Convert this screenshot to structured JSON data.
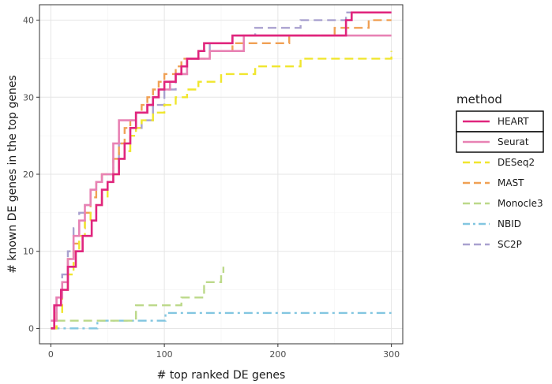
{
  "chart_data": {
    "type": "line",
    "title": "",
    "xlabel": "# top ranked DE genes",
    "ylabel": "# known DE genes in the top genes",
    "xlim": [
      -10,
      310
    ],
    "ylim": [
      -2,
      42
    ],
    "xticks": [
      0,
      100,
      200,
      300
    ],
    "yticks": [
      0,
      10,
      20,
      30,
      40
    ],
    "grid": true,
    "legend": {
      "title": "method",
      "position": "right"
    },
    "series": [
      {
        "name": "HEART",
        "color": "#e0257d",
        "linestyle": "solid",
        "boxed": true,
        "x": [
          0,
          3,
          6,
          9,
          12,
          15,
          18,
          22,
          25,
          28,
          32,
          36,
          40,
          45,
          50,
          55,
          60,
          65,
          70,
          75,
          80,
          85,
          90,
          95,
          100,
          105,
          110,
          115,
          120,
          125,
          130,
          135,
          140,
          150,
          160,
          170,
          180,
          200,
          230,
          260,
          265,
          300
        ],
        "y": [
          0,
          3,
          3,
          5,
          5,
          8,
          8,
          10,
          10,
          12,
          12,
          14,
          16,
          18,
          19,
          20,
          22,
          24,
          26,
          28,
          28,
          29,
          30,
          31,
          32,
          32,
          33,
          34,
          35,
          35,
          36,
          37,
          37,
          37,
          38,
          38,
          38,
          38,
          38,
          40,
          41,
          41
        ]
      },
      {
        "name": "Seurat",
        "color": "#e882b4",
        "linestyle": "solid",
        "boxed": true,
        "x": [
          0,
          5,
          10,
          15,
          20,
          25,
          30,
          35,
          40,
          45,
          50,
          55,
          60,
          65,
          70,
          75,
          80,
          85,
          90,
          95,
          100,
          105,
          110,
          120,
          130,
          140,
          150,
          160,
          170,
          180,
          200,
          250,
          300
        ],
        "y": [
          1,
          4,
          6,
          9,
          12,
          14,
          16,
          18,
          19,
          20,
          20,
          24,
          27,
          27,
          27,
          28,
          28,
          29,
          30,
          31,
          31,
          32,
          33,
          35,
          35,
          36,
          36,
          36,
          38,
          38,
          38,
          38,
          38
        ]
      },
      {
        "name": "DESeq2",
        "color": "#f0e62e",
        "linestyle": "dashed",
        "boxed": false,
        "x": [
          0,
          5,
          10,
          15,
          20,
          25,
          30,
          35,
          40,
          45,
          50,
          55,
          60,
          65,
          70,
          75,
          80,
          90,
          100,
          110,
          120,
          130,
          140,
          150,
          160,
          170,
          180,
          200,
          220,
          240,
          260,
          280,
          300
        ],
        "y": [
          0,
          2,
          5,
          7,
          10,
          12,
          14,
          15,
          16,
          17,
          19,
          20,
          22,
          23,
          25,
          26,
          27,
          28,
          29,
          30,
          31,
          32,
          32,
          33,
          33,
          33,
          34,
          34,
          35,
          35,
          35,
          35,
          36
        ]
      },
      {
        "name": "MAST",
        "color": "#f0a054",
        "linestyle": "dashed",
        "boxed": false,
        "x": [
          0,
          5,
          10,
          15,
          20,
          25,
          30,
          35,
          40,
          45,
          50,
          55,
          60,
          65,
          70,
          75,
          80,
          85,
          90,
          95,
          100,
          105,
          110,
          115,
          120,
          140,
          150,
          160,
          170,
          200,
          210,
          220,
          250,
          280,
          300
        ],
        "y": [
          0,
          3,
          6,
          9,
          11,
          13,
          15,
          17,
          19,
          20,
          20,
          22,
          24,
          26,
          27,
          28,
          29,
          30,
          31,
          32,
          33,
          33,
          34,
          35,
          35,
          36,
          36,
          37,
          37,
          37,
          38,
          38,
          39,
          40,
          40
        ]
      },
      {
        "name": "Monocle3",
        "color": "#bcd98a",
        "linestyle": "dashed",
        "boxed": false,
        "x": [
          0,
          3,
          8,
          20,
          40,
          55,
          70,
          75,
          90,
          105,
          115,
          120,
          135,
          140,
          150,
          152
        ],
        "y": [
          0,
          1,
          1,
          1,
          1,
          1,
          1,
          3,
          3,
          3,
          4,
          4,
          6,
          6,
          7,
          8
        ]
      },
      {
        "name": "NBID",
        "color": "#82c6e0",
        "linestyle": "dashdot",
        "boxed": false,
        "x": [
          0,
          40,
          41,
          90,
          100,
          101,
          150,
          200,
          250,
          300
        ],
        "y": [
          0,
          0,
          1,
          1,
          1,
          2,
          2,
          2,
          2,
          2
        ]
      },
      {
        "name": "SC2P",
        "color": "#a9a1cf",
        "linestyle": "dashed",
        "boxed": false,
        "x": [
          0,
          5,
          10,
          15,
          20,
          25,
          30,
          35,
          40,
          45,
          50,
          55,
          60,
          70,
          80,
          90,
          100,
          110,
          120,
          130,
          140,
          150,
          160,
          180,
          200,
          220,
          240,
          260,
          280,
          300
        ],
        "y": [
          1,
          4,
          7,
          10,
          13,
          15,
          16,
          18,
          19,
          20,
          20,
          22,
          24,
          26,
          27,
          29,
          31,
          33,
          35,
          36,
          37,
          37,
          38,
          39,
          39,
          40,
          40,
          41,
          41,
          41
        ]
      }
    ]
  }
}
